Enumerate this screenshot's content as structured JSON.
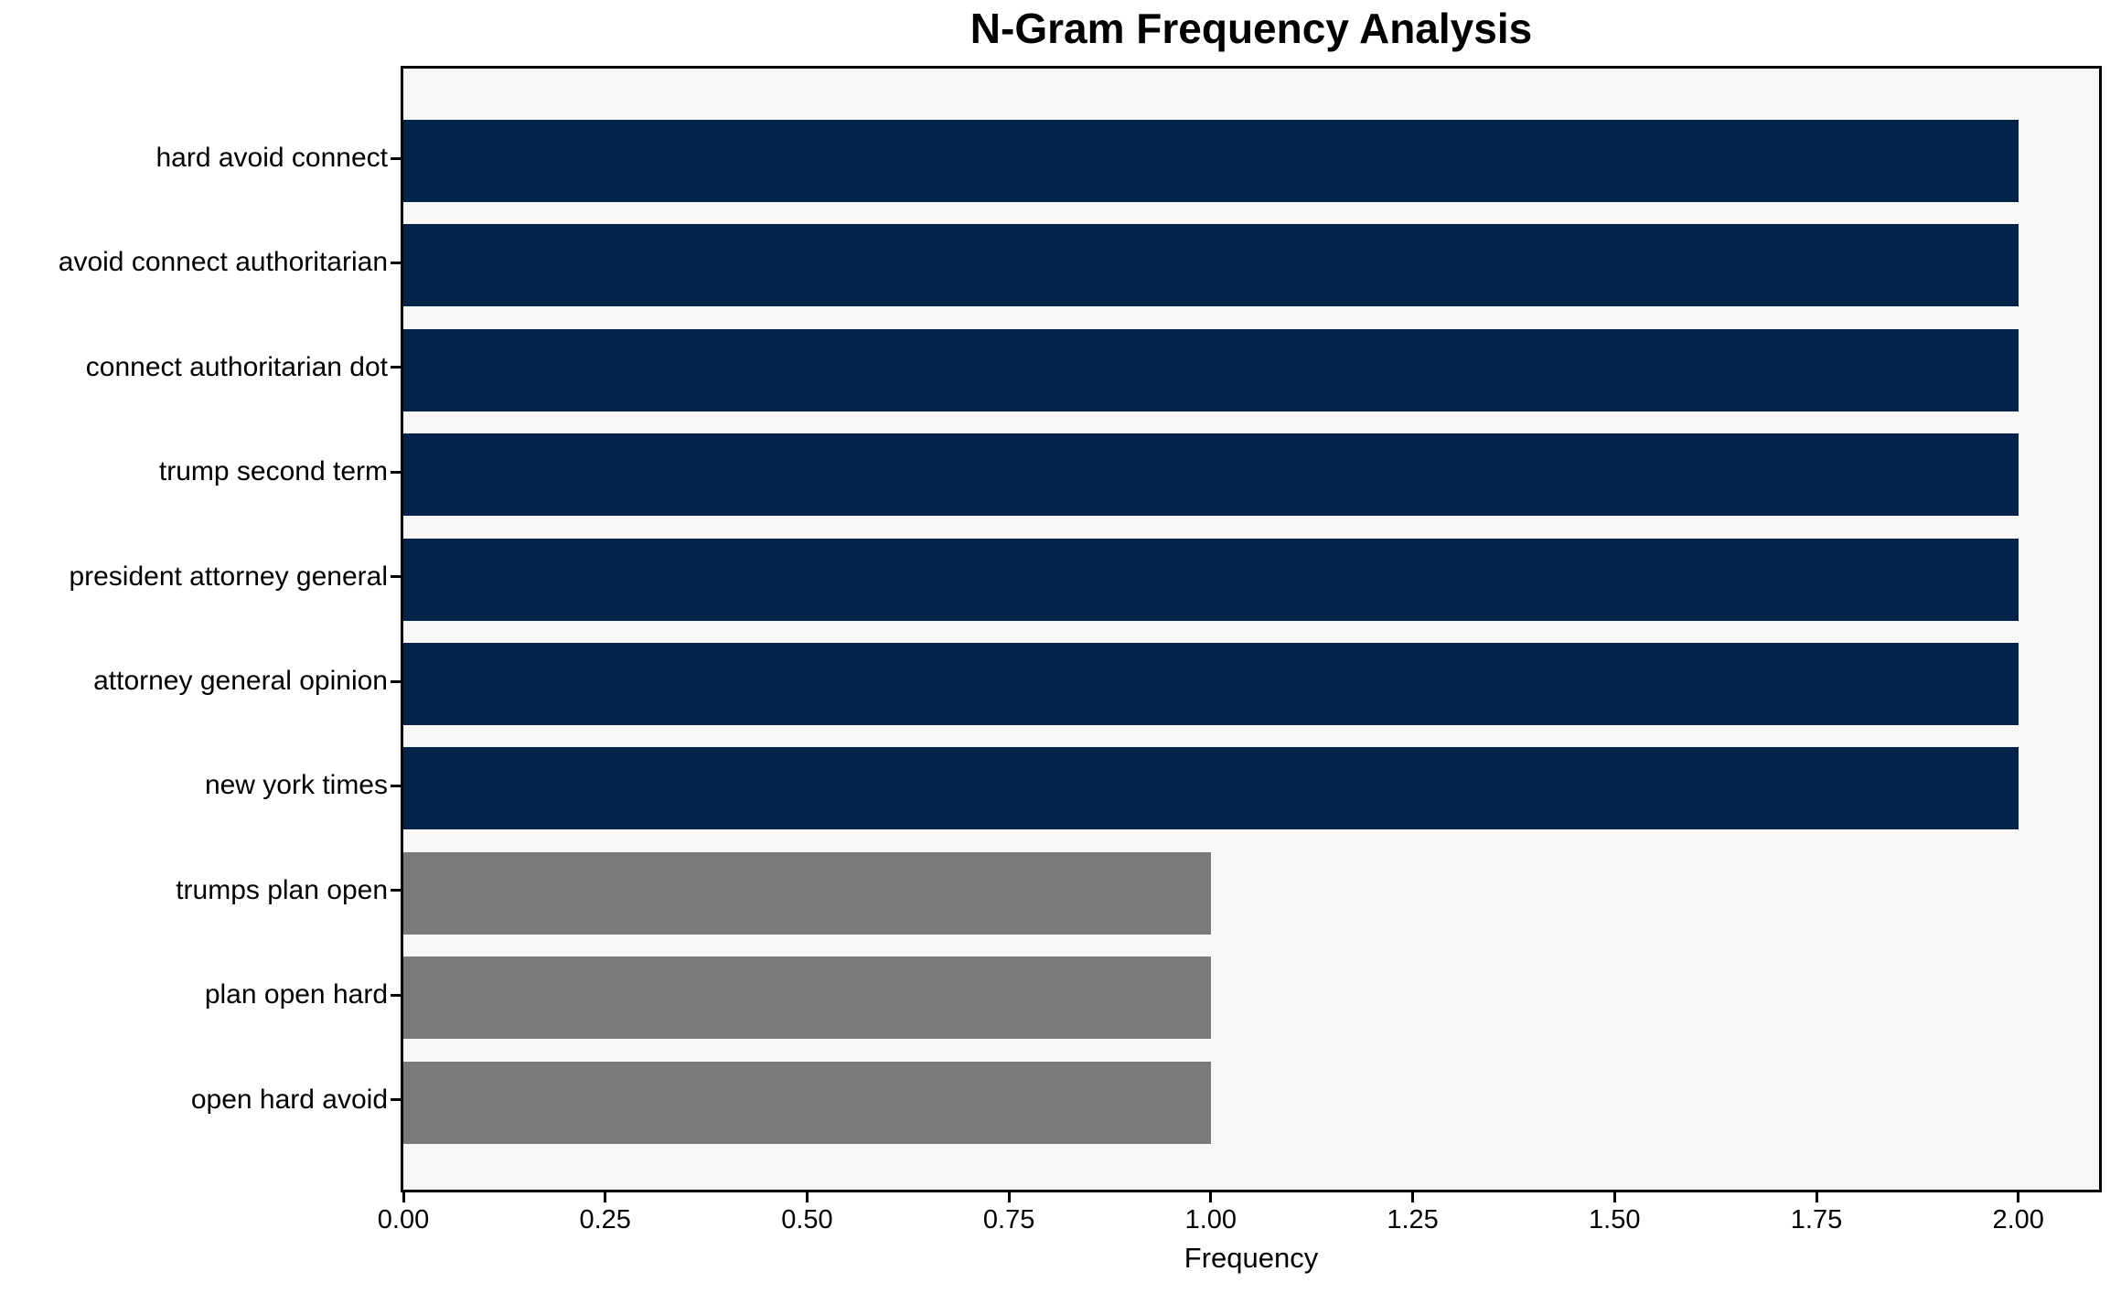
{
  "chart_data": {
    "type": "bar",
    "orientation": "horizontal",
    "title": "N-Gram Frequency Analysis",
    "xlabel": "Frequency",
    "categories": [
      "hard avoid connect",
      "avoid connect authoritarian",
      "connect authoritarian dot",
      "trump second term",
      "president attorney general",
      "attorney general opinion",
      "new york times",
      "trumps plan open",
      "plan open hard",
      "open hard avoid"
    ],
    "values": [
      2,
      2,
      2,
      2,
      2,
      2,
      2,
      1,
      1,
      1
    ],
    "bar_colors": [
      "#03234a",
      "#03234a",
      "#03234a",
      "#03234a",
      "#03234a",
      "#03234a",
      "#03234a",
      "#7b7a78",
      "#7b7a78",
      "#7b7a78"
    ],
    "x_tick_labels": [
      "0.00",
      "0.25",
      "0.50",
      "0.75",
      "1.00",
      "1.25",
      "1.50",
      "1.75",
      "2.00"
    ],
    "xlim": [
      0,
      2.1
    ],
    "grid": false,
    "legend_position": "none",
    "colors": {
      "bar_high": "#03234a",
      "bar_low": "#7b7a78",
      "plot_background": "#f7f7f6",
      "figure_background": "#ffffff",
      "spine": "#000000",
      "text": "#000000"
    }
  }
}
